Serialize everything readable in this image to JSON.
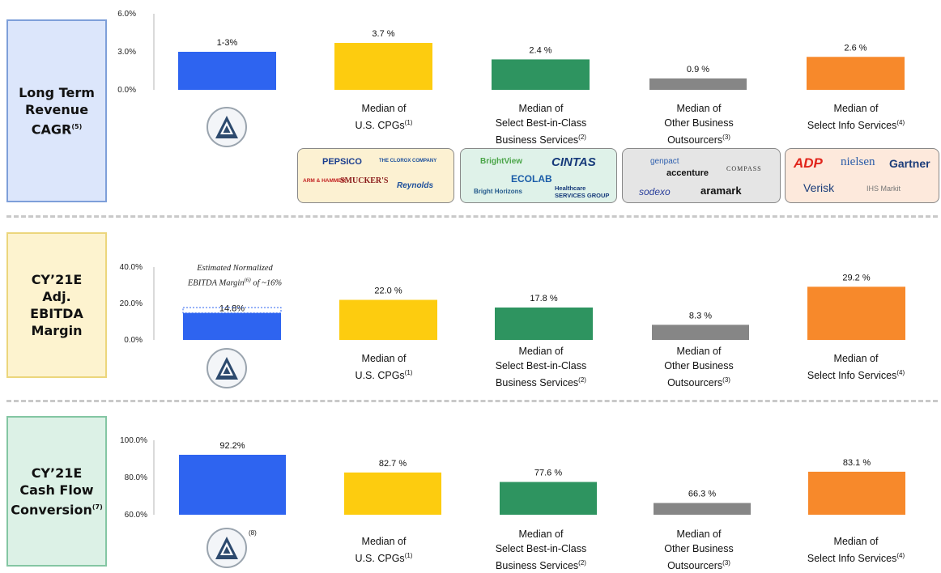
{
  "sections": [
    {
      "id": "revenue",
      "label_lines": [
        "Long Term",
        "Revenue",
        "CAGR"
      ],
      "label_sup": "(5)",
      "label_bg": "#dce6fb",
      "label_border": "#7e9fd9"
    },
    {
      "id": "ebitda",
      "label_lines": [
        "CY’21E",
        "Adj.",
        "EBITDA",
        "Margin"
      ],
      "label_sup": "",
      "label_bg": "#fdf3cf",
      "label_border": "#ecd67c"
    },
    {
      "id": "cashflow",
      "label_lines": [
        "CY’21E",
        "Cash Flow",
        "Conversion"
      ],
      "label_sup": "(7)",
      "label_bg": "#dcf1e6",
      "label_border": "#84c6a3"
    }
  ],
  "categories": [
    {
      "id": "company",
      "line1": "",
      "line2": "",
      "line3": "",
      "sup": ""
    },
    {
      "id": "cpgs",
      "line1": "Median of",
      "line2": "U.S. CPGs",
      "line3": "",
      "sup": "(1)"
    },
    {
      "id": "business-services",
      "line1": "Median of",
      "line2": "Select Best-in-Class",
      "line3": "Business Services",
      "sup": "(2)"
    },
    {
      "id": "outsourcers",
      "line1": "Median of",
      "line2": "Other Business",
      "line3": "Outsourcers",
      "sup": "(3)"
    },
    {
      "id": "info-services",
      "line1": "Median of",
      "line2": "Select Info Services",
      "line3": "",
      "sup": "(4)"
    }
  ],
  "colors": {
    "company": "#2e64f0",
    "cpgs": "#fdcc0f",
    "business-services": "#2e9460",
    "outsourcers": "#868686",
    "info-services": "#f7892b"
  },
  "chart_data": [
    {
      "type": "bar",
      "section": "Long Term Revenue CAGR",
      "categories": [
        "Company",
        "Median of U.S. CPGs",
        "Median of Select Best-in-Class Business Services",
        "Median of Other Business Outsourcers",
        "Median of Select Info Services"
      ],
      "values": [
        3.0,
        3.7,
        2.4,
        0.9,
        2.6
      ],
      "value_labels": [
        "1-3%",
        "3.7 %",
        "2.4 %",
        "0.9 %",
        "2.6 %"
      ],
      "yticks": [
        "6.0%",
        "3.0%",
        "0.0%"
      ],
      "ylim": [
        0,
        6
      ],
      "grid": false
    },
    {
      "type": "bar",
      "section": "CY’21E Adj. EBITDA Margin",
      "categories": [
        "Company",
        "Median of U.S. CPGs",
        "Median of Select Best-in-Class Business Services",
        "Median of Other Business Outsourcers",
        "Median of Select Info Services"
      ],
      "values": [
        14.8,
        22.0,
        17.8,
        8.3,
        29.2
      ],
      "value_labels": [
        "14.8%",
        "22.0 %",
        "17.8 %",
        "8.3 %",
        "29.2 %"
      ],
      "normalized_value": 16,
      "yticks": [
        "40.0%",
        "20.0%",
        "0.0%"
      ],
      "ylim": [
        0,
        40
      ],
      "grid": false
    },
    {
      "type": "bar",
      "section": "CY’21E Cash Flow Conversion",
      "categories": [
        "Company",
        "Median of U.S. CPGs",
        "Median of Select Best-in-Class Business Services",
        "Median of Other Business Outsourcers",
        "Median of Select Info Services"
      ],
      "values": [
        92.2,
        82.7,
        77.6,
        66.3,
        83.1
      ],
      "value_labels": [
        "92.2%",
        "82.7 %",
        "77.6 %",
        "66.3 %",
        "83.1 %"
      ],
      "yticks": [
        "100.0%",
        "80.0%",
        "60.0%"
      ],
      "ylim": [
        60,
        100
      ],
      "grid": false
    }
  ],
  "annotation": {
    "line1": "Estimated Normalized",
    "line2_a": "EBITDA Margin",
    "line2_sup": "(6)",
    "line2_b": " of ~16%"
  },
  "company_logo_sup_cashflow": "(8)",
  "peer_logos": {
    "cpgs": [
      "PEPSICO",
      "THE CLOROX COMPANY",
      "ARM & HAMMER",
      "SMUCKER'S",
      "Reynolds"
    ],
    "business-services": [
      "BrightView",
      "CINTAS",
      "ECOLAB",
      "Bright Horizons",
      "Healthcare SERVICES GROUP"
    ],
    "outsourcers": [
      "genpact",
      "accenture",
      "COMPASS",
      "sodexo",
      "aramark"
    ],
    "info-services": [
      "ADP",
      "nielsen",
      "Gartner",
      "Verisk",
      "IHS Markit"
    ]
  }
}
